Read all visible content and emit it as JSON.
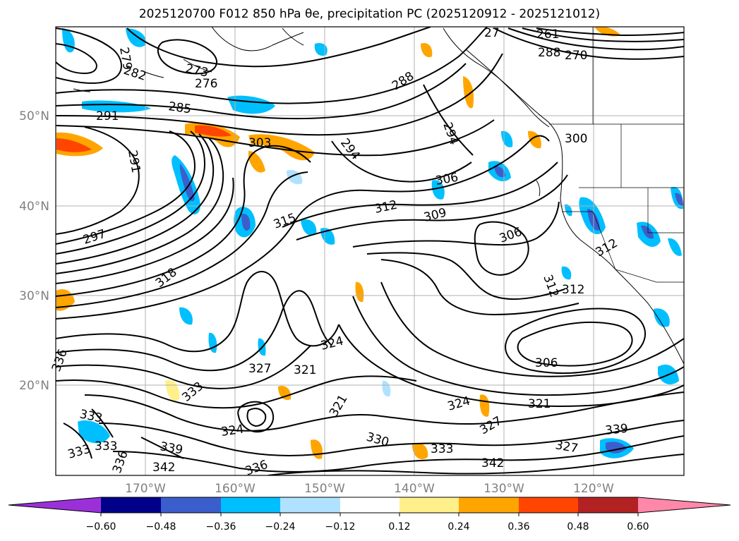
{
  "title": "2025120700 F012 850 hPa θe, precipitation PC (2025120912 - 2025121012)",
  "map": {
    "lat_labels": [
      "50°N",
      "40°N",
      "30°N",
      "20°N"
    ],
    "lon_labels": [
      "170°W",
      "160°W",
      "150°W",
      "140°W",
      "130°W",
      "120°W"
    ],
    "colors": {
      "contour": "#000000",
      "frame": "#000000",
      "grid": "#b0b0b0",
      "tick_label": "#808080"
    }
  },
  "contour_labels": [
    "279",
    "282",
    "273",
    "276",
    "285",
    "291",
    "288",
    "291",
    "303",
    "294",
    "294",
    "300",
    "288",
    "270",
    "261",
    "27",
    "306",
    "297",
    "312",
    "315",
    "309",
    "306",
    "318",
    "312",
    "312",
    "312",
    "324",
    "327",
    "321",
    "336",
    "333",
    "321",
    "306",
    "324",
    "333",
    "324",
    "327",
    "321",
    "333",
    "330",
    "333",
    "327",
    "339",
    "336",
    "339",
    "342",
    "342",
    "336",
    "333"
  ],
  "colorbar": {
    "tick_labels": [
      "−0.60",
      "−0.48",
      "−0.36",
      "−0.24",
      "−0.12",
      "0.12",
      "0.24",
      "0.36",
      "0.48",
      "0.60"
    ],
    "colors": [
      "#9b30d9",
      "#00008b",
      "#3a5fcd",
      "#00bfff",
      "#b0e2ff",
      "#ffffff",
      "#fff08c",
      "#ffa500",
      "#ff4500",
      "#b22222",
      "#ff88aa"
    ]
  }
}
